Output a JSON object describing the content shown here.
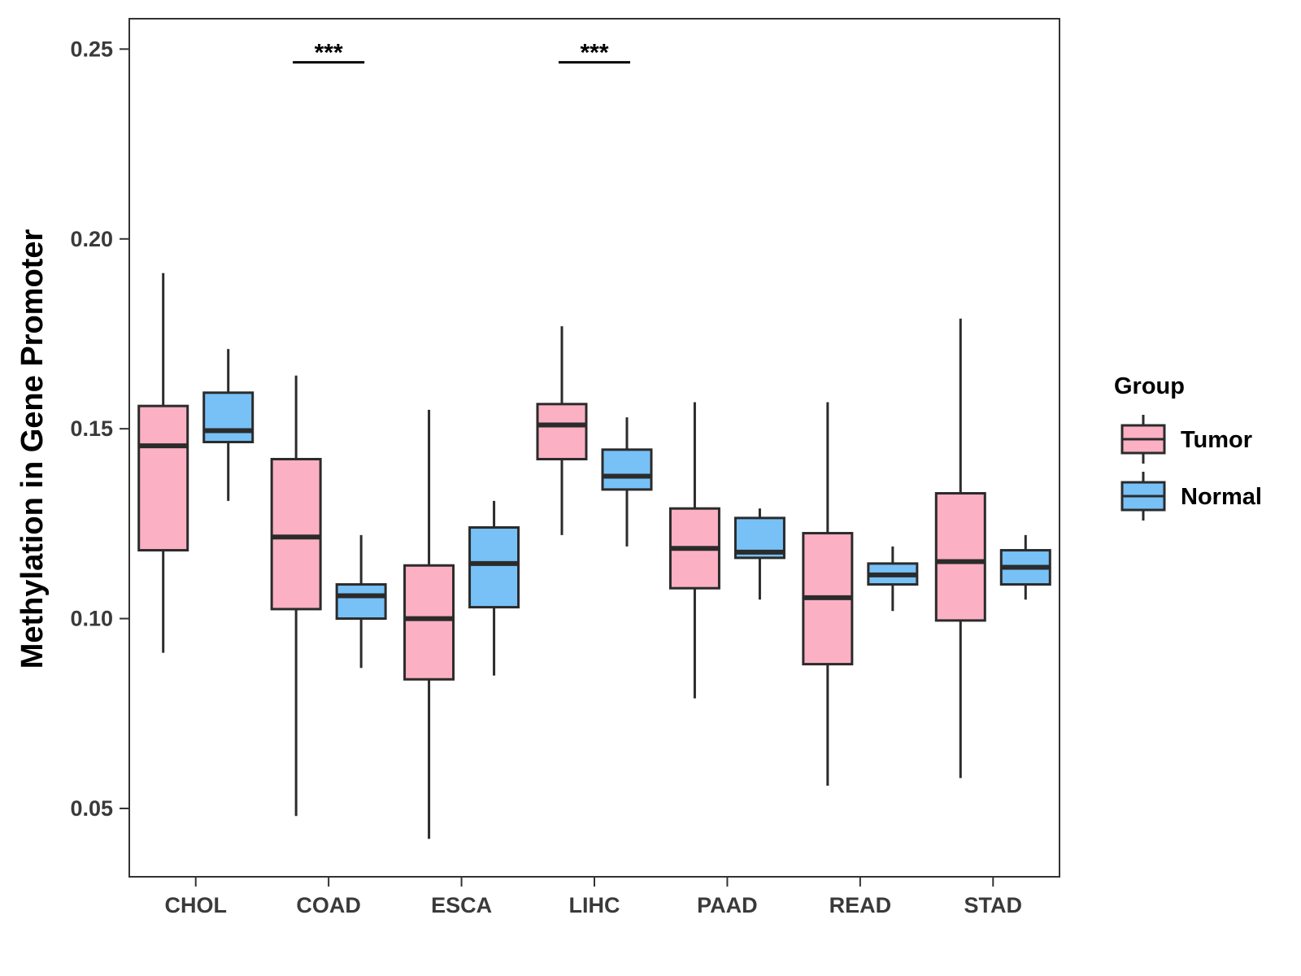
{
  "chart_data": {
    "type": "boxplot",
    "title": "",
    "xlabel": "",
    "ylabel": "Methylation in Gene Promoter",
    "ylim": [
      0.032,
      0.258
    ],
    "yticks": [
      "0.05",
      "0.10",
      "0.15",
      "0.20",
      "0.25"
    ],
    "categories": [
      "CHOL",
      "COAD",
      "ESCA",
      "LIHC",
      "PAAD",
      "READ",
      "STAD"
    ],
    "series": [
      {
        "name": "Tumor",
        "color": "#FBB0C3",
        "boxes": [
          {
            "min": 0.091,
            "q1": 0.118,
            "median": 0.1455,
            "q3": 0.156,
            "max": 0.191
          },
          {
            "min": 0.048,
            "q1": 0.1025,
            "median": 0.1215,
            "q3": 0.142,
            "max": 0.164
          },
          {
            "min": 0.042,
            "q1": 0.084,
            "median": 0.1,
            "q3": 0.114,
            "max": 0.155
          },
          {
            "min": 0.122,
            "q1": 0.142,
            "median": 0.151,
            "q3": 0.1565,
            "max": 0.177
          },
          {
            "min": 0.079,
            "q1": 0.108,
            "median": 0.1185,
            "q3": 0.129,
            "max": 0.157
          },
          {
            "min": 0.056,
            "q1": 0.088,
            "median": 0.1055,
            "q3": 0.1225,
            "max": 0.157
          },
          {
            "min": 0.058,
            "q1": 0.0995,
            "median": 0.115,
            "q3": 0.133,
            "max": 0.179
          }
        ]
      },
      {
        "name": "Normal",
        "color": "#77C1F7",
        "boxes": [
          {
            "min": 0.131,
            "q1": 0.1465,
            "median": 0.1495,
            "q3": 0.1595,
            "max": 0.171
          },
          {
            "min": 0.087,
            "q1": 0.1,
            "median": 0.106,
            "q3": 0.109,
            "max": 0.122
          },
          {
            "min": 0.085,
            "q1": 0.103,
            "median": 0.1145,
            "q3": 0.124,
            "max": 0.131
          },
          {
            "min": 0.119,
            "q1": 0.134,
            "median": 0.1375,
            "q3": 0.1445,
            "max": 0.153
          },
          {
            "min": 0.105,
            "q1": 0.116,
            "median": 0.1175,
            "q3": 0.1265,
            "max": 0.129
          },
          {
            "min": 0.102,
            "q1": 0.109,
            "median": 0.1115,
            "q3": 0.1145,
            "max": 0.119
          },
          {
            "min": 0.105,
            "q1": 0.109,
            "median": 0.1135,
            "q3": 0.118,
            "max": 0.122
          }
        ]
      }
    ],
    "annotations": [
      {
        "category": "COAD",
        "label": "***",
        "y": 0.2465
      },
      {
        "category": "LIHC",
        "label": "***",
        "y": 0.2465
      }
    ],
    "legend": {
      "title": "Group",
      "position": "right",
      "entries": [
        "Tumor",
        "Normal"
      ]
    }
  }
}
